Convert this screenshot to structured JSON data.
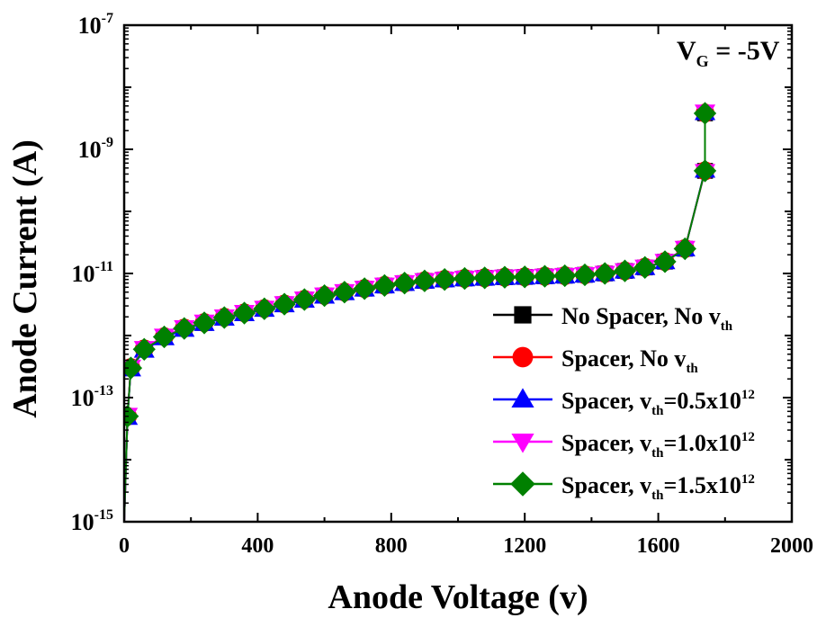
{
  "chart_data": {
    "type": "line",
    "x_scale": "linear",
    "y_scale": "log",
    "xlabel": "Anode Voltage (v)",
    "ylabel": "Anode Current (A)",
    "xlim": [
      0,
      2000
    ],
    "ylim": [
      1e-15,
      1e-07
    ],
    "x_ticks": [
      0,
      400,
      800,
      1200,
      1600,
      2000
    ],
    "x_tick_labels": [
      "0",
      "400",
      "800",
      "1200",
      "1600",
      "2000"
    ],
    "y_ticks": [
      1e-15,
      1e-13,
      1e-11,
      1e-09,
      1e-07
    ],
    "y_tick_labels": [
      {
        "base": "10",
        "exp": "-15"
      },
      {
        "base": "10",
        "exp": "-13"
      },
      {
        "base": "10",
        "exp": "-11"
      },
      {
        "base": "10",
        "exp": "-9"
      },
      {
        "base": "10",
        "exp": "-7"
      }
    ],
    "grid": false,
    "legend_position": "bottom-right",
    "annotation": {
      "main": "V",
      "sub": "G",
      "rest": " = -5V"
    },
    "x": [
      0,
      10,
      20,
      60,
      120,
      180,
      240,
      300,
      360,
      420,
      480,
      540,
      600,
      660,
      720,
      780,
      840,
      900,
      960,
      1020,
      1080,
      1140,
      1200,
      1260,
      1320,
      1380,
      1440,
      1500,
      1560,
      1620,
      1680,
      1740,
      1740
    ],
    "series": [
      {
        "name": {
          "pre": "No Spacer, No v",
          "sub": "th",
          "sup": "",
          "post": ""
        },
        "color": "#000000",
        "marker": "square",
        "y": [
          1e-15,
          5e-14,
          3e-13,
          6e-13,
          9.5e-13,
          1.3e-12,
          1.6e-12,
          1.95e-12,
          2.3e-12,
          2.7e-12,
          3.2e-12,
          3.8e-12,
          4.4e-12,
          5e-12,
          5.7e-12,
          6.4e-12,
          7e-12,
          7.6e-12,
          8e-12,
          8.3e-12,
          8.5e-12,
          8.7e-12,
          8.8e-12,
          9e-12,
          9.2e-12,
          9.5e-12,
          1e-11,
          1.1e-11,
          1.25e-11,
          1.55e-11,
          2.5e-11,
          4.5e-10,
          3.8e-09
        ]
      },
      {
        "name": {
          "pre": "Spacer, No v",
          "sub": "th",
          "sup": "",
          "post": ""
        },
        "color": "#ff0000",
        "marker": "circle",
        "y": [
          1e-15,
          5e-14,
          3.05e-13,
          6.1e-13,
          9.6e-13,
          1.32e-12,
          1.62e-12,
          1.97e-12,
          2.32e-12,
          2.72e-12,
          3.22e-12,
          3.82e-12,
          4.42e-12,
          5.02e-12,
          5.72e-12,
          6.42e-12,
          7.02e-12,
          7.62e-12,
          8.02e-12,
          8.32e-12,
          8.52e-12,
          8.72e-12,
          8.82e-12,
          9.02e-12,
          9.22e-12,
          9.52e-12,
          1e-11,
          1.1e-11,
          1.26e-11,
          1.56e-11,
          2.52e-11,
          4.5e-10,
          3.85e-09
        ]
      },
      {
        "name": {
          "pre": "Spacer, v",
          "sub": "th",
          "sup": "12",
          "post": "=0.5x10"
        },
        "color": "#0000ff",
        "marker": "triangle-up",
        "y": [
          1e-15,
          4.8e-14,
          2.9e-13,
          5.8e-13,
          9.2e-13,
          1.26e-12,
          1.56e-12,
          1.9e-12,
          2.25e-12,
          2.64e-12,
          3.12e-12,
          3.7e-12,
          4.3e-12,
          4.9e-12,
          5.6e-12,
          6.3e-12,
          6.9e-12,
          7.5e-12,
          7.9e-12,
          8.2e-12,
          8.4e-12,
          8.6e-12,
          8.7e-12,
          8.9e-12,
          9.1e-12,
          9.4e-12,
          9.9e-12,
          1.09e-11,
          1.24e-11,
          1.54e-11,
          2.48e-11,
          4.6e-10,
          3.9e-09
        ]
      },
      {
        "name": {
          "pre": "Spacer, v",
          "sub": "th",
          "sup": "12",
          "post": "=1.0x10"
        },
        "color": "#ff00ff",
        "marker": "triangle-down",
        "y": [
          1e-15,
          5.2e-14,
          3.1e-13,
          6.2e-13,
          9.8e-13,
          1.34e-12,
          1.65e-12,
          2e-12,
          2.36e-12,
          2.76e-12,
          3.27e-12,
          3.88e-12,
          4.5e-12,
          5.1e-12,
          5.8e-12,
          6.5e-12,
          7.1e-12,
          7.7e-12,
          8.1e-12,
          8.4e-12,
          8.6e-12,
          8.8e-12,
          8.9e-12,
          9.1e-12,
          9.3e-12,
          9.6e-12,
          1.01e-11,
          1.11e-11,
          1.27e-11,
          1.57e-11,
          2.55e-11,
          4.4e-10,
          4e-09
        ]
      },
      {
        "name": {
          "pre": "Spacer, v",
          "sub": "th",
          "sup": "12",
          "post": "=1.5x10"
        },
        "color": "#008000",
        "marker": "diamond",
        "y": [
          1e-15,
          5e-14,
          3e-13,
          6e-13,
          9.5e-13,
          1.3e-12,
          1.6e-12,
          1.95e-12,
          2.3e-12,
          2.7e-12,
          3.2e-12,
          3.8e-12,
          4.4e-12,
          5e-12,
          5.7e-12,
          6.4e-12,
          7e-12,
          7.6e-12,
          8e-12,
          8.3e-12,
          8.5e-12,
          8.7e-12,
          8.8e-12,
          9e-12,
          9.2e-12,
          9.5e-12,
          1e-11,
          1.1e-11,
          1.25e-11,
          1.55e-11,
          2.5e-11,
          4.5e-10,
          3.8e-09
        ]
      }
    ]
  }
}
